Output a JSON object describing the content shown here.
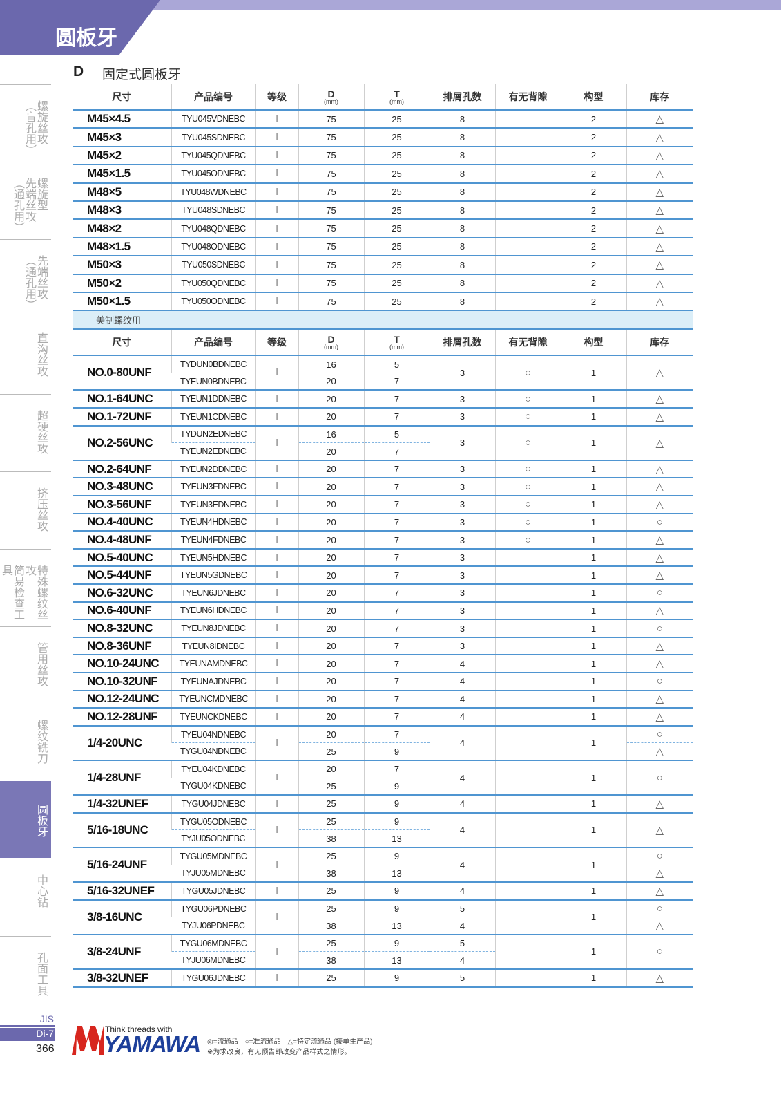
{
  "header": {
    "title": "圆板牙"
  },
  "section": {
    "letter": "D",
    "title": "固定式圆板牙"
  },
  "sidebar": {
    "tabs": [
      {
        "lines": [
          "螺旋丝攻",
          "（盲孔用）"
        ]
      },
      {
        "lines": [
          "螺旋型",
          "先端丝攻",
          "（通孔用）"
        ]
      },
      {
        "lines": [
          "先端丝攻",
          "（通孔用）"
        ]
      },
      {
        "lines": [
          "直沟丝攻"
        ]
      },
      {
        "lines": [
          "超硬丝攻"
        ]
      },
      {
        "lines": [
          "挤压丝攻"
        ]
      },
      {
        "lines": [
          "特殊螺纹丝攻",
          "简易检查工具"
        ]
      },
      {
        "lines": [
          "管用丝攻"
        ]
      },
      {
        "lines": [
          "螺纹铣刀"
        ]
      },
      {
        "lines": [
          "圆板牙"
        ],
        "active": true
      },
      {
        "lines": [
          "中心钻"
        ]
      },
      {
        "lines": [
          "孔面工具"
        ]
      }
    ]
  },
  "table": {
    "columns": [
      {
        "label": "尺寸"
      },
      {
        "label": "产品编号"
      },
      {
        "label": "等级"
      },
      {
        "label": "D",
        "unit": "(mm)"
      },
      {
        "label": "T",
        "unit": "(mm)"
      },
      {
        "label": "排屑孔数"
      },
      {
        "label": "有无背隙"
      },
      {
        "label": "构型"
      },
      {
        "label": "库存"
      }
    ],
    "metric_rows": [
      {
        "size": "M45×4.5",
        "code": "TYU045VDNEBC",
        "grade": "Ⅱ",
        "d": 75,
        "t": 25,
        "holes": 8,
        "form": 2,
        "stock": "△"
      },
      {
        "size": "M45×3",
        "code": "TYU045SDNEBC",
        "grade": "Ⅱ",
        "d": 75,
        "t": 25,
        "holes": 8,
        "form": 2,
        "stock": "△"
      },
      {
        "size": "M45×2",
        "code": "TYU045QDNEBC",
        "grade": "Ⅱ",
        "d": 75,
        "t": 25,
        "holes": 8,
        "form": 2,
        "stock": "△"
      },
      {
        "size": "M45×1.5",
        "code": "TYU045ODNEBC",
        "grade": "Ⅱ",
        "d": 75,
        "t": 25,
        "holes": 8,
        "form": 2,
        "stock": "△"
      },
      {
        "size": "M48×5",
        "code": "TYU048WDNEBC",
        "grade": "Ⅱ",
        "d": 75,
        "t": 25,
        "holes": 8,
        "form": 2,
        "stock": "△"
      },
      {
        "size": "M48×3",
        "code": "TYU048SDNEBC",
        "grade": "Ⅱ",
        "d": 75,
        "t": 25,
        "holes": 8,
        "form": 2,
        "stock": "△"
      },
      {
        "size": "M48×2",
        "code": "TYU048QDNEBC",
        "grade": "Ⅱ",
        "d": 75,
        "t": 25,
        "holes": 8,
        "form": 2,
        "stock": "△"
      },
      {
        "size": "M48×1.5",
        "code": "TYU048ODNEBC",
        "grade": "Ⅱ",
        "d": 75,
        "t": 25,
        "holes": 8,
        "form": 2,
        "stock": "△"
      },
      {
        "size": "M50×3",
        "code": "TYU050SDNEBC",
        "grade": "Ⅱ",
        "d": 75,
        "t": 25,
        "holes": 8,
        "form": 2,
        "stock": "△"
      },
      {
        "size": "M50×2",
        "code": "TYU050QDNEBC",
        "grade": "Ⅱ",
        "d": 75,
        "t": 25,
        "holes": 8,
        "form": 2,
        "stock": "△"
      },
      {
        "size": "M50×1.5",
        "code": "TYU050ODNEBC",
        "grade": "Ⅱ",
        "d": 75,
        "t": 25,
        "holes": 8,
        "form": 2,
        "stock": "△"
      }
    ],
    "un_heading": "美制螺纹用",
    "un_rows": [
      {
        "size": "NO.0-80UNF",
        "code": [
          "TYDUN0BDNEBC",
          "TYEUN0BDNEBC"
        ],
        "grade": "Ⅱ",
        "d": [
          16,
          20
        ],
        "t": [
          5,
          7
        ],
        "holes": 3,
        "backlash": "○",
        "form": 1,
        "stock": "△"
      },
      {
        "size": "NO.1-64UNC",
        "code": "TYEUN1DDNEBC",
        "grade": "Ⅱ",
        "d": 20,
        "t": 7,
        "holes": 3,
        "backlash": "○",
        "form": 1,
        "stock": "△"
      },
      {
        "size": "NO.1-72UNF",
        "code": "TYEUN1CDNEBC",
        "grade": "Ⅱ",
        "d": 20,
        "t": 7,
        "holes": 3,
        "backlash": "○",
        "form": 1,
        "stock": "△"
      },
      {
        "size": "NO.2-56UNC",
        "code": [
          "TYDUN2EDNEBC",
          "TYEUN2EDNEBC"
        ],
        "grade": "Ⅱ",
        "d": [
          16,
          20
        ],
        "t": [
          5,
          7
        ],
        "holes": 3,
        "backlash": "○",
        "form": 1,
        "stock": "△"
      },
      {
        "size": "NO.2-64UNF",
        "code": "TYEUN2DDNEBC",
        "grade": "Ⅱ",
        "d": 20,
        "t": 7,
        "holes": 3,
        "backlash": "○",
        "form": 1,
        "stock": "△"
      },
      {
        "size": "NO.3-48UNC",
        "code": "TYEUN3FDNEBC",
        "grade": "Ⅱ",
        "d": 20,
        "t": 7,
        "holes": 3,
        "backlash": "○",
        "form": 1,
        "stock": "△"
      },
      {
        "size": "NO.3-56UNF",
        "code": "TYEUN3EDNEBC",
        "grade": "Ⅱ",
        "d": 20,
        "t": 7,
        "holes": 3,
        "backlash": "○",
        "form": 1,
        "stock": "△"
      },
      {
        "size": "NO.4-40UNC",
        "code": "TYEUN4HDNEBC",
        "grade": "Ⅱ",
        "d": 20,
        "t": 7,
        "holes": 3,
        "backlash": "○",
        "form": 1,
        "stock": "○"
      },
      {
        "size": "NO.4-48UNF",
        "code": "TYEUN4FDNEBC",
        "grade": "Ⅱ",
        "d": 20,
        "t": 7,
        "holes": 3,
        "backlash": "○",
        "form": 1,
        "stock": "△"
      },
      {
        "size": "NO.5-40UNC",
        "code": "TYEUN5HDNEBC",
        "grade": "Ⅱ",
        "d": 20,
        "t": 7,
        "holes": 3,
        "form": 1,
        "stock": "△"
      },
      {
        "size": "NO.5-44UNF",
        "code": "TYEUN5GDNEBC",
        "grade": "Ⅱ",
        "d": 20,
        "t": 7,
        "holes": 3,
        "form": 1,
        "stock": "△"
      },
      {
        "size": "NO.6-32UNC",
        "code": "TYEUN6JDNEBC",
        "grade": "Ⅱ",
        "d": 20,
        "t": 7,
        "holes": 3,
        "form": 1,
        "stock": "○"
      },
      {
        "size": "NO.6-40UNF",
        "code": "TYEUN6HDNEBC",
        "grade": "Ⅱ",
        "d": 20,
        "t": 7,
        "holes": 3,
        "form": 1,
        "stock": "△"
      },
      {
        "size": "NO.8-32UNC",
        "code": "TYEUN8JDNEBC",
        "grade": "Ⅱ",
        "d": 20,
        "t": 7,
        "holes": 3,
        "form": 1,
        "stock": "○"
      },
      {
        "size": "NO.8-36UNF",
        "code": "TYEUN8IDNEBC",
        "grade": "Ⅱ",
        "d": 20,
        "t": 7,
        "holes": 3,
        "form": 1,
        "stock": "△"
      },
      {
        "size": "NO.10-24UNC",
        "code": "TYEUNAMDNEBC",
        "grade": "Ⅱ",
        "d": 20,
        "t": 7,
        "holes": 4,
        "form": 1,
        "stock": "△"
      },
      {
        "size": "NO.10-32UNF",
        "code": "TYEUNAJDNEBC",
        "grade": "Ⅱ",
        "d": 20,
        "t": 7,
        "holes": 4,
        "form": 1,
        "stock": "○"
      },
      {
        "size": "NO.12-24UNC",
        "code": "TYEUNCMDNEBC",
        "grade": "Ⅱ",
        "d": 20,
        "t": 7,
        "holes": 4,
        "form": 1,
        "stock": "△"
      },
      {
        "size": "NO.12-28UNF",
        "code": "TYEUNCKDNEBC",
        "grade": "Ⅱ",
        "d": 20,
        "t": 7,
        "holes": 4,
        "form": 1,
        "stock": "△"
      },
      {
        "size": "1/4-20UNC",
        "code": [
          "TYEU04NDNEBC",
          "TYGU04NDNEBC"
        ],
        "grade": "Ⅱ",
        "d": [
          20,
          25
        ],
        "t": [
          7,
          9
        ],
        "holes": 4,
        "form": 1,
        "stock": [
          "○",
          "△"
        ]
      },
      {
        "size": "1/4-28UNF",
        "code": [
          "TYEU04KDNEBC",
          "TYGU04KDNEBC"
        ],
        "grade": "Ⅱ",
        "d": [
          20,
          25
        ],
        "t": [
          7,
          9
        ],
        "holes": 4,
        "form": 1,
        "stock": "○"
      },
      {
        "size": "1/4-32UNEF",
        "code": "TYGU04JDNEBC",
        "grade": "Ⅱ",
        "d": 25,
        "t": 9,
        "holes": 4,
        "form": 1,
        "stock": "△"
      },
      {
        "size": "5/16-18UNC",
        "code": [
          "TYGU05ODNEBC",
          "TYJU05ODNEBC"
        ],
        "grade": "Ⅱ",
        "d": [
          25,
          38
        ],
        "t": [
          9,
          13
        ],
        "holes": 4,
        "form": 1,
        "stock": "△"
      },
      {
        "size": "5/16-24UNF",
        "code": [
          "TYGU05MDNEBC",
          "TYJU05MDNEBC"
        ],
        "grade": "Ⅱ",
        "d": [
          25,
          38
        ],
        "t": [
          9,
          13
        ],
        "holes": 4,
        "form": 1,
        "stock": [
          "○",
          "△"
        ]
      },
      {
        "size": "5/16-32UNEF",
        "code": "TYGU05JDNEBC",
        "grade": "Ⅱ",
        "d": 25,
        "t": 9,
        "holes": 4,
        "form": 1,
        "stock": "△"
      },
      {
        "size": "3/8-16UNC",
        "code": [
          "TYGU06PDNEBC",
          "TYJU06PDNEBC"
        ],
        "grade": "Ⅱ",
        "d": [
          25,
          38
        ],
        "t": [
          9,
          13
        ],
        "holes": [
          5,
          4
        ],
        "form": 1,
        "stock": [
          "○",
          "△"
        ]
      },
      {
        "size": "3/8-24UNF",
        "code": [
          "TYGU06MDNEBC",
          "TYJU06MDNEBC"
        ],
        "grade": "Ⅱ",
        "d": [
          25,
          38
        ],
        "t": [
          9,
          13
        ],
        "holes": [
          5,
          4
        ],
        "form": 1,
        "stock": "○"
      },
      {
        "size": "3/8-32UNEF",
        "code": "TYGU06JDNEBC",
        "grade": "Ⅱ",
        "d": 25,
        "t": 9,
        "holes": 5,
        "form": 1,
        "stock": "△"
      }
    ]
  },
  "footer": {
    "standard": "JIS",
    "page_code": "Di-7",
    "page_number": "366",
    "tagline": "Think threads with",
    "brand": "YAMAWA",
    "legend": "◎=流通品　○=准流通品　△=特定流通品 (接单生产品)",
    "note": "※为求改良，有无预告即改变产品样式之情形。"
  }
}
